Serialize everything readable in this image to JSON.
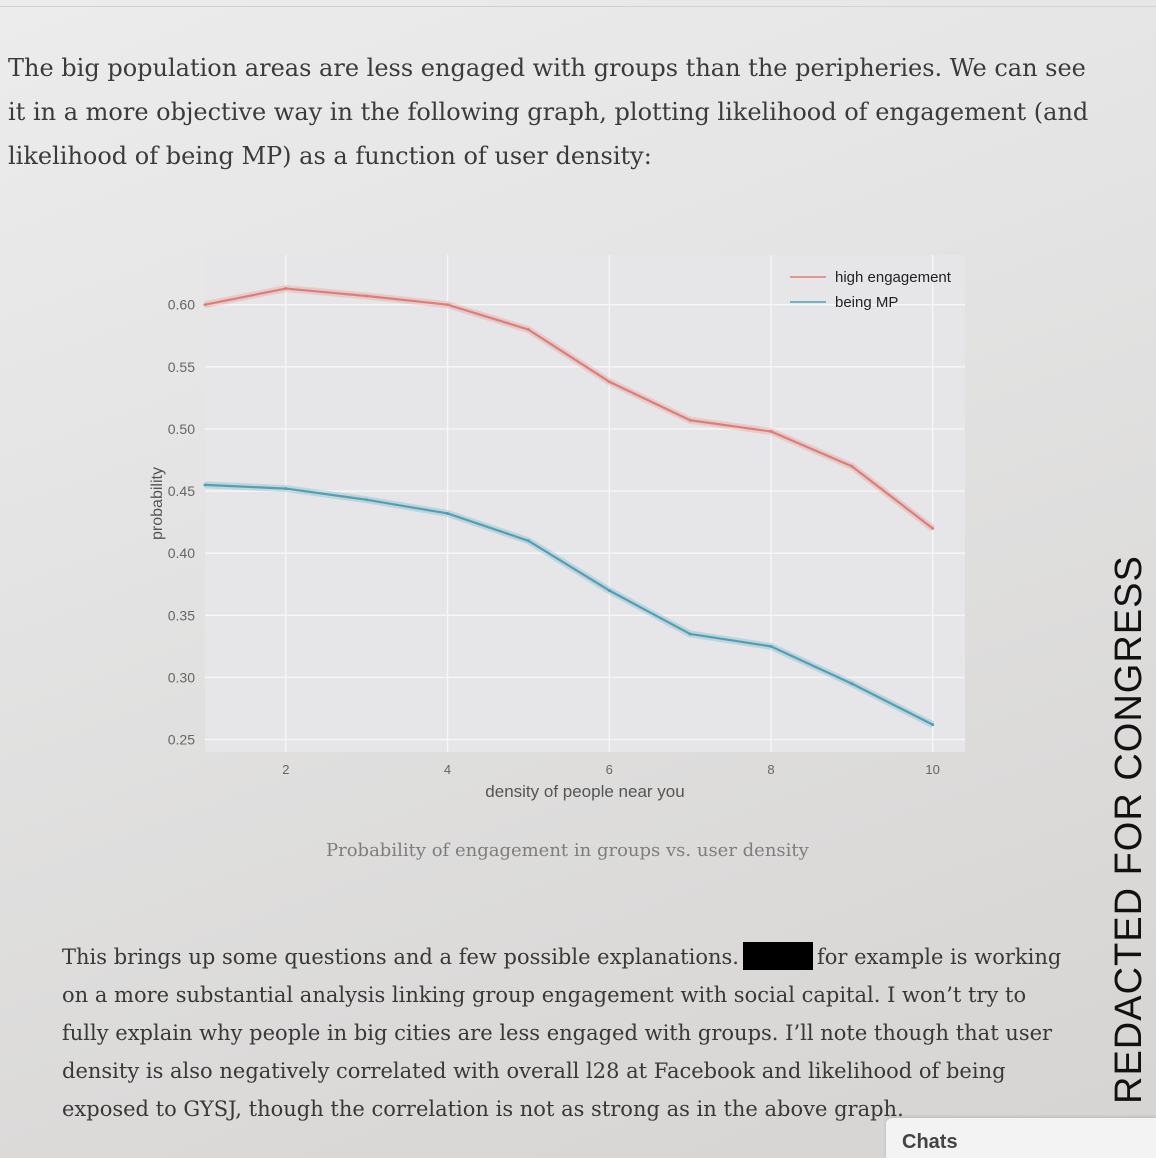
{
  "intro_text": "The big population areas are less engaged with groups than the peripheries. We can see it in a more objective way in the following graph, plotting likelihood of engagement (and likelihood of being MP) as a function of user density:",
  "caption": "Probability of engagement in groups vs. user density",
  "body": {
    "part1": "This brings up some questions and a few possible explanations.",
    "part2": "for example is working on a more substantial analysis linking group engagement with social capital.  I won’t try to fully explain why people in big cities are less engaged with groups. I’ll note though that user density is also negatively correlated with overall l28 at Facebook and likelihood of being exposed to GYSJ, though the correlation is not as strong as in the above graph."
  },
  "side_banner": "REDACTED FOR CONGRESS",
  "chats_label": "Chats",
  "colors": {
    "high_engagement": "#e07d76",
    "being_mp": "#4fa0b6",
    "plot_bg": "#e6e6e8",
    "grid": "#f7f7f7"
  },
  "chart_data": {
    "type": "line",
    "title": "",
    "xlabel": "density of people near you",
    "ylabel": "probability",
    "xlim": [
      1,
      10.4
    ],
    "ylim": [
      0.24,
      0.64
    ],
    "xticks": [
      2,
      4,
      6,
      8,
      10
    ],
    "yticks": [
      0.25,
      0.3,
      0.35,
      0.4,
      0.45,
      0.5,
      0.55,
      0.6
    ],
    "ytick_labels": [
      "0.25",
      "0.30",
      "0.35",
      "0.40",
      "0.45",
      "0.50",
      "0.55",
      "0.60"
    ],
    "grid": true,
    "legend": "top-right",
    "series": [
      {
        "name": "high engagement",
        "x": [
          1,
          2,
          3,
          4,
          5,
          6,
          7,
          8,
          9,
          10
        ],
        "values": [
          0.6,
          0.613,
          0.607,
          0.6,
          0.58,
          0.538,
          0.507,
          0.498,
          0.47,
          0.42
        ]
      },
      {
        "name": "being MP",
        "x": [
          1,
          2,
          3,
          4,
          5,
          6,
          7,
          8,
          9,
          10
        ],
        "values": [
          0.455,
          0.452,
          0.443,
          0.432,
          0.41,
          0.37,
          0.335,
          0.325,
          0.295,
          0.262
        ]
      }
    ]
  }
}
